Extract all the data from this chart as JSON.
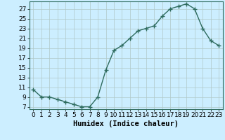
{
  "x": [
    0,
    1,
    2,
    3,
    4,
    5,
    6,
    7,
    8,
    9,
    10,
    11,
    12,
    13,
    14,
    15,
    16,
    17,
    18,
    19,
    20,
    21,
    22,
    23
  ],
  "y": [
    10.5,
    9.0,
    9.0,
    8.5,
    8.0,
    7.5,
    7.0,
    7.0,
    9.0,
    14.5,
    18.5,
    19.5,
    21.0,
    22.5,
    23.0,
    23.5,
    25.5,
    27.0,
    27.5,
    28.0,
    27.0,
    23.0,
    20.5,
    19.5
  ],
  "line_color": "#2e6b5e",
  "bg_color": "#cceeff",
  "grid_color": "#b0c8c8",
  "xlabel": "Humidex (Indice chaleur)",
  "xlim": [
    -0.5,
    23.5
  ],
  "ylim": [
    6.5,
    28.5
  ],
  "yticks": [
    7,
    9,
    11,
    13,
    15,
    17,
    19,
    21,
    23,
    25,
    27
  ],
  "xticks": [
    0,
    1,
    2,
    3,
    4,
    5,
    6,
    7,
    8,
    9,
    10,
    11,
    12,
    13,
    14,
    15,
    16,
    17,
    18,
    19,
    20,
    21,
    22,
    23
  ],
  "xlabel_fontsize": 7.5,
  "tick_fontsize": 6.5,
  "marker": "+",
  "marker_size": 4,
  "line_width": 1.0
}
